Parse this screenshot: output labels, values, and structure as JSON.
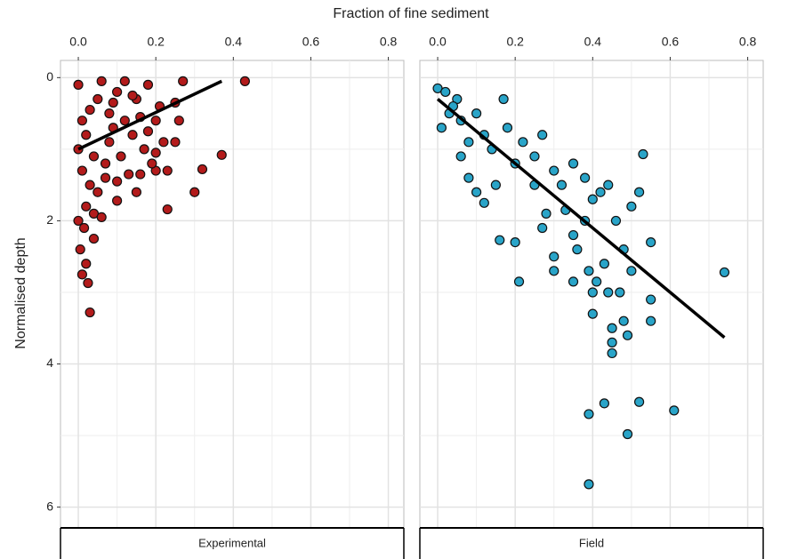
{
  "chart_data": [
    {
      "type": "scatter",
      "panel": "Experimental",
      "xlabel": "Fraction of fine sediment",
      "ylabel": "Normalised depth",
      "color": "#b31b1b",
      "line_color": "#000000",
      "xlim": [
        -0.046,
        0.84
      ],
      "ylim": [
        6.29,
        -0.24
      ],
      "xticks": [
        {
          "value": 0,
          "label": "0.0"
        },
        0.2,
        0.4,
        0.6,
        0.8
      ],
      "yticks": [
        0,
        2,
        4,
        6
      ],
      "y_tick_labels": true,
      "grid": true,
      "minor_grid": true,
      "x": [
        0.43,
        0.37,
        0.32,
        0.3,
        0.23,
        0.27,
        0.26,
        0.25,
        0.2,
        0.15,
        0.1,
        0.03,
        0.025,
        0.01,
        0.02,
        0.005,
        0.015,
        0.04,
        0.06,
        0.03,
        0.0,
        0.05,
        0.08,
        0.1,
        0.12,
        0.15,
        0.18,
        0.2,
        0.22,
        0.17,
        0.14,
        0.11,
        0.07,
        0.09,
        0.02,
        0.0,
        0.01,
        0.05,
        0.13,
        0.19,
        0.21,
        0.16,
        0.06,
        0.03,
        0.08,
        0.12,
        0.25,
        0.2,
        0.02,
        0.04,
        0.0,
        0.07,
        0.1,
        0.16,
        0.23,
        0.18,
        0.14,
        0.09,
        0.04,
        0.01
      ],
      "y": [
        0.05,
        1.08,
        1.28,
        1.6,
        1.84,
        0.05,
        0.6,
        0.9,
        1.3,
        1.6,
        1.72,
        3.28,
        2.87,
        2.75,
        2.6,
        2.4,
        2.1,
        1.9,
        1.95,
        1.5,
        0.1,
        0.3,
        0.5,
        0.2,
        0.05,
        0.3,
        0.1,
        0.6,
        0.9,
        1.0,
        0.8,
        1.1,
        1.2,
        0.7,
        0.8,
        1.0,
        1.3,
        1.6,
        1.35,
        1.2,
        0.4,
        0.55,
        0.05,
        0.45,
        0.9,
        0.6,
        0.35,
        1.05,
        1.8,
        2.25,
        2.0,
        1.4,
        1.45,
        1.35,
        1.3,
        0.75,
        0.25,
        0.35,
        1.1,
        0.6
      ],
      "fit": {
        "x": [
          0,
          0.37
        ],
        "y": [
          1.0,
          0.05
        ]
      }
    },
    {
      "type": "scatter",
      "panel": "Field",
      "color": "#29a4c8",
      "line_color": "#000000",
      "xlim": [
        -0.046,
        0.84
      ],
      "ylim": [
        6.29,
        -0.24
      ],
      "xticks": [
        {
          "value": 0,
          "label": "0.0"
        },
        0.2,
        0.4,
        0.6,
        0.8
      ],
      "yticks": [
        0,
        2,
        4,
        6
      ],
      "y_tick_labels": false,
      "grid": true,
      "minor_grid": true,
      "x": [
        0.0,
        0.02,
        0.05,
        0.03,
        0.01,
        0.06,
        0.08,
        0.1,
        0.12,
        0.14,
        0.17,
        0.18,
        0.2,
        0.22,
        0.25,
        0.27,
        0.3,
        0.32,
        0.35,
        0.38,
        0.4,
        0.42,
        0.44,
        0.46,
        0.48,
        0.5,
        0.53,
        0.52,
        0.55,
        0.74,
        0.55,
        0.55,
        0.5,
        0.47,
        0.44,
        0.43,
        0.41,
        0.4,
        0.45,
        0.45,
        0.45,
        0.48,
        0.49,
        0.4,
        0.39,
        0.36,
        0.35,
        0.38,
        0.3,
        0.3,
        0.27,
        0.2,
        0.16,
        0.21,
        0.35,
        0.39,
        0.43,
        0.52,
        0.61,
        0.49,
        0.39,
        0.08,
        0.1,
        0.15,
        0.12,
        0.25,
        0.28,
        0.33,
        0.06,
        0.04
      ],
      "y": [
        0.15,
        0.2,
        0.3,
        0.5,
        0.7,
        0.6,
        0.9,
        0.5,
        0.8,
        1.0,
        0.3,
        0.7,
        1.2,
        0.9,
        1.1,
        0.8,
        1.3,
        1.5,
        1.2,
        1.4,
        1.7,
        1.6,
        1.5,
        2.0,
        2.4,
        1.8,
        1.07,
        1.6,
        2.3,
        2.72,
        3.1,
        3.4,
        2.7,
        3.0,
        3.0,
        2.6,
        2.85,
        3.3,
        3.5,
        3.7,
        3.85,
        3.4,
        3.6,
        3.0,
        2.7,
        2.4,
        2.2,
        2.0,
        2.7,
        2.5,
        2.1,
        2.3,
        2.27,
        2.85,
        2.85,
        4.7,
        4.55,
        4.53,
        4.65,
        4.98,
        5.68,
        1.4,
        1.6,
        1.5,
        1.75,
        1.5,
        1.9,
        1.85,
        1.1,
        0.4
      ],
      "fit": {
        "x": [
          0,
          0.74
        ],
        "y": [
          0.3,
          3.63
        ]
      }
    }
  ]
}
